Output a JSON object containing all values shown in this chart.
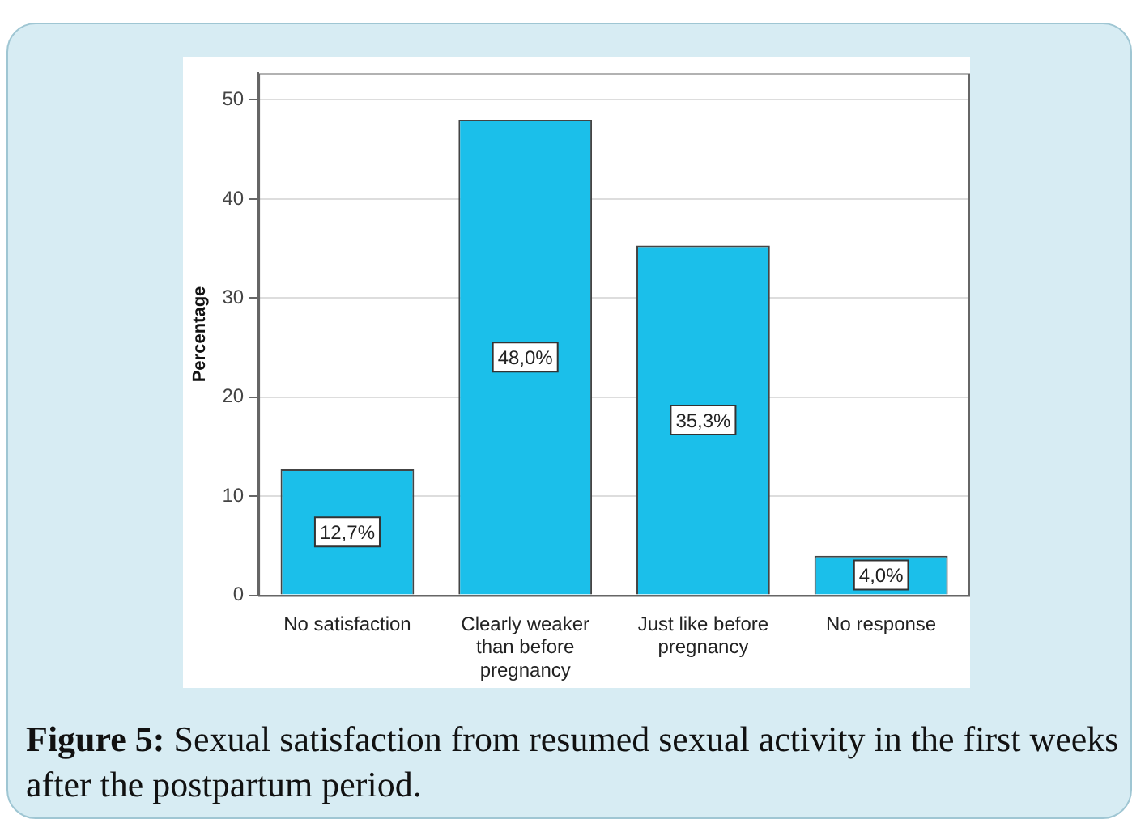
{
  "chart_data": {
    "type": "bar",
    "title": "Figure 5: Sexual satisfaction from resumed sexual activity in the first weeks after the postpartum period.",
    "ylabel": "Percentage",
    "categories": [
      "No satisfaction",
      "Clearly weaker than before pregnancy",
      "Just like before pregnancy",
      "No response"
    ],
    "values": [
      12.7,
      48.0,
      35.3,
      4.0
    ],
    "value_labels": [
      "12,7%",
      "48,0%",
      "35,3%",
      "4,0%"
    ],
    "color": "#1bbfea",
    "ylim": [
      0,
      52.7
    ],
    "yticks": [
      0,
      10,
      20,
      30,
      40,
      50
    ],
    "grid": "y",
    "legend": false
  }
}
